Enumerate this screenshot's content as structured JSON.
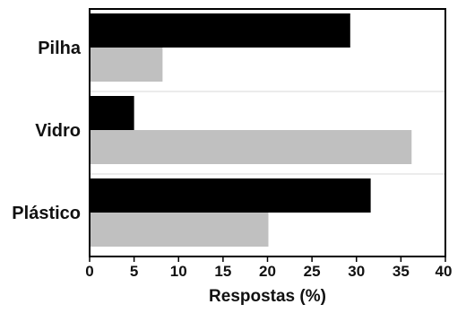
{
  "chart_data": {
    "type": "bar",
    "orientation": "horizontal",
    "categories": [
      "Pilha",
      "Vidro",
      "Plástico"
    ],
    "series": [
      {
        "values": [
          29.3,
          5.0,
          31.6
        ],
        "color": "#000000"
      },
      {
        "values": [
          8.2,
          36.2,
          20.1
        ],
        "color": "#c0c0c0"
      }
    ],
    "xlabel": "Respostas (%)",
    "ylabel": "",
    "title": "",
    "xlim": [
      0,
      40
    ],
    "xticks": [
      0,
      5,
      10,
      15,
      20,
      25,
      30,
      35,
      40
    ],
    "grid": false,
    "legend": "none"
  }
}
